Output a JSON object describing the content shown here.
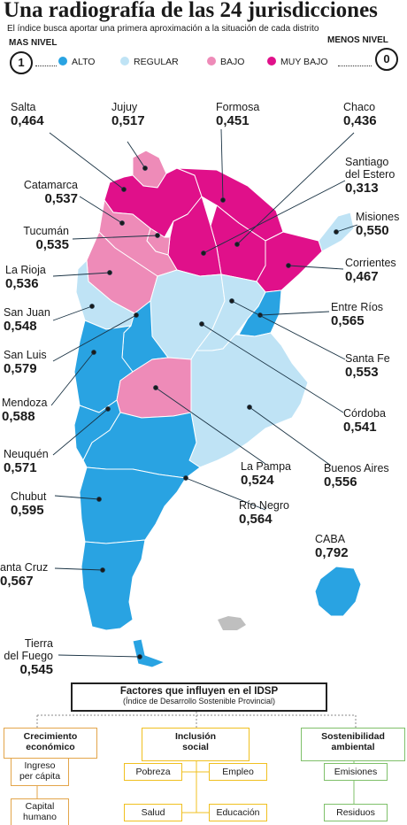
{
  "title": "Una radiografía de las 24 jurisdicciones",
  "subtitle": "El índice busca aportar una primera aproximación a la situación de cada distrito",
  "scale": {
    "max_label": "MAS NIVEL",
    "max_value": "1",
    "min_label": "MENOS NIVEL",
    "min_value": "0"
  },
  "legend": [
    {
      "label": "ALTO",
      "color": "#29a3e2"
    },
    {
      "label": "REGULAR",
      "color": "#bfe3f5"
    },
    {
      "label": "BAJO",
      "color": "#ee8bb8"
    },
    {
      "label": "MUY BAJO",
      "color": "#e0108a"
    }
  ],
  "provinces": [
    {
      "name": "Salta",
      "value": "0,464",
      "level": "BAJO"
    },
    {
      "name": "Jujuy",
      "value": "0,517",
      "level": "BAJO"
    },
    {
      "name": "Formosa",
      "value": "0,451",
      "level": "MUY BAJO"
    },
    {
      "name": "Chaco",
      "value": "0,436",
      "level": "MUY BAJO"
    },
    {
      "name": "Catamarca",
      "value": "0,537",
      "level": "BAJO"
    },
    {
      "name": "Santiago del Estero",
      "name_lines": [
        "Santiago",
        "del Estero"
      ],
      "value": "0,313",
      "level": "MUY BAJO"
    },
    {
      "name": "Tucumán",
      "value": "0,535",
      "level": "BAJO"
    },
    {
      "name": "Misiones",
      "value": "0,550",
      "level": "REGULAR"
    },
    {
      "name": "La Rioja",
      "value": "0,536",
      "level": "BAJO"
    },
    {
      "name": "Corrientes",
      "value": "0,467",
      "level": "MUY BAJO"
    },
    {
      "name": "San Juan",
      "value": "0,548",
      "level": "REGULAR"
    },
    {
      "name": "Entre Ríos",
      "value": "0,565",
      "level": "ALTO"
    },
    {
      "name": "San Luis",
      "value": "0,579",
      "level": "ALTO"
    },
    {
      "name": "Santa Fe",
      "value": "0,553",
      "level": "REGULAR"
    },
    {
      "name": "Mendoza",
      "value": "0,588",
      "level": "ALTO"
    },
    {
      "name": "Córdoba",
      "value": "0,541",
      "level": "REGULAR"
    },
    {
      "name": "Neuquén",
      "value": "0,571",
      "level": "ALTO"
    },
    {
      "name": "La Pampa",
      "value": "0,524",
      "level": "BAJO"
    },
    {
      "name": "Buenos Aires",
      "value": "0,556",
      "level": "REGULAR"
    },
    {
      "name": "Chubut",
      "value": "0,595",
      "level": "ALTO"
    },
    {
      "name": "Río Negro",
      "value": "0,564",
      "level": "ALTO"
    },
    {
      "name": "CABA",
      "value": "0,792",
      "level": "ALTO"
    },
    {
      "name": "Santa Cruz",
      "name_shown": "anta Cruz",
      "value": "0,567",
      "level": "ALTO"
    },
    {
      "name": "Tierra del Fuego",
      "name_lines": [
        "Tierra",
        "del Fuego"
      ],
      "value": "0,545",
      "level": "REGULAR"
    }
  ],
  "factors": {
    "title": "Factores que influyen en el IDSP",
    "subtitle": "(Índice de Desarrollo Sostenible Provincial)",
    "categories": [
      {
        "title_lines": [
          "Crecimiento",
          "económico"
        ],
        "color": "#e3a54a",
        "items": [
          [
            "Ingreso",
            "per cápita"
          ],
          [
            "Capital",
            "humano"
          ]
        ]
      },
      {
        "title_lines": [
          "Inclusión",
          "social"
        ],
        "color": "#f0c020",
        "items": [
          [
            "Pobreza"
          ],
          [
            "Empleo"
          ],
          [
            "Salud"
          ],
          [
            "Educación"
          ]
        ]
      },
      {
        "title_lines": [
          "Sostenibilidad",
          "ambiental"
        ],
        "color": "#7fc06a",
        "items": [
          [
            "Emisiones"
          ],
          [
            "Residuos"
          ]
        ]
      }
    ]
  }
}
